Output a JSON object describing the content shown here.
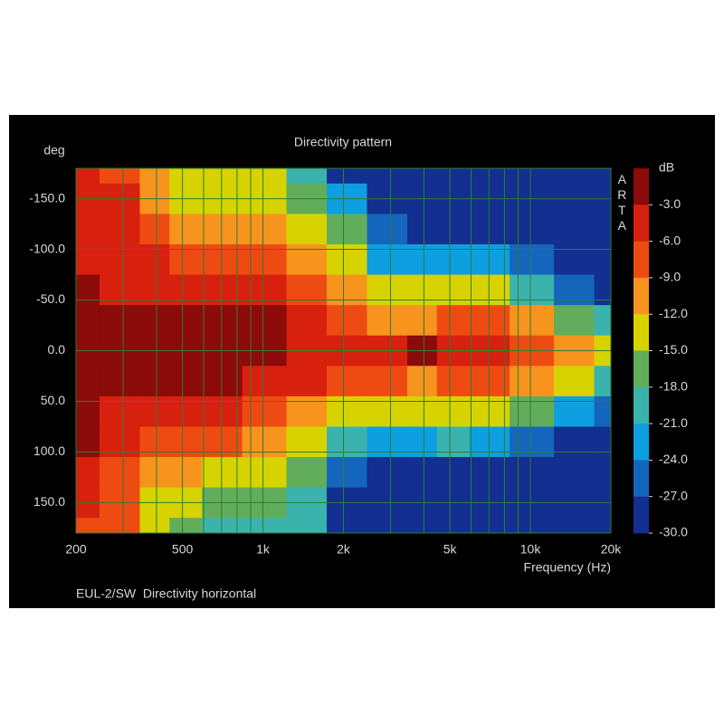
{
  "chart_data": {
    "type": "heatmap",
    "title": "Directivity pattern",
    "y_label": "deg",
    "x_label": "Frequency (Hz)",
    "footer": "EUL-2/SW  Directivity horizontal",
    "watermark": "ARTA",
    "colorbar_label": "dB",
    "x": [
      200,
      300,
      400,
      500,
      700,
      1000,
      1500,
      2000,
      3000,
      4000,
      5000,
      7000,
      10000,
      15000,
      20000
    ],
    "y": [
      -180,
      -150,
      -120,
      -90,
      -60,
      -30,
      0,
      30,
      60,
      90,
      120,
      150,
      180
    ],
    "z": [
      [
        -4,
        -7,
        -10,
        -13,
        -14,
        -12,
        -19,
        -28,
        -30,
        -31,
        -31,
        -31,
        -31,
        -31,
        -31
      ],
      [
        -4,
        -5,
        -11,
        -12,
        -13,
        -12,
        -16,
        -22,
        -31,
        -31,
        -31,
        -31,
        -31,
        -31,
        -31
      ],
      [
        -5,
        -5,
        -7,
        -9,
        -9,
        -10,
        -13,
        -17,
        -26,
        -28,
        -28,
        -29,
        -30,
        -31,
        -31
      ],
      [
        -5,
        -4,
        -5,
        -6,
        -6,
        -6,
        -10,
        -13,
        -21,
        -22,
        -21,
        -23,
        -25,
        -28,
        -30
      ],
      [
        -2,
        -3,
        -4,
        -4,
        -4,
        -5,
        -8,
        -10,
        -14,
        -14,
        -14,
        -14,
        -19,
        -24,
        -28
      ],
      [
        -1,
        -1,
        -2,
        -2,
        -2,
        -2,
        -5,
        -7,
        -9,
        -9,
        -8,
        -6,
        -11,
        -15,
        -20
      ],
      [
        -1,
        -1,
        -1,
        -1,
        -1,
        -1,
        -4,
        -5,
        -4,
        -2,
        -4,
        -4,
        -6,
        -9,
        -12
      ],
      [
        -1,
        -1,
        -2,
        -2,
        -2,
        -3,
        -5,
        -7,
        -7,
        -9,
        -8,
        -7,
        -9,
        -14,
        -18
      ],
      [
        -2,
        -3,
        -4,
        -4,
        -5,
        -6,
        -9,
        -13,
        -12,
        -14,
        -14,
        -14,
        -16,
        -21,
        -26
      ],
      [
        -2,
        -5,
        -6,
        -7,
        -8,
        -9,
        -12,
        -18,
        -21,
        -22,
        -20,
        -22,
        -24,
        -27,
        -30
      ],
      [
        -5,
        -6,
        -10,
        -11,
        -12,
        -12,
        -16,
        -25,
        -27,
        -29,
        -28,
        -29,
        -30,
        -31,
        -31
      ],
      [
        -5,
        -8,
        -12,
        -13,
        -16,
        -17,
        -19,
        -28,
        -30,
        -31,
        -31,
        -31,
        -31,
        -31,
        -31
      ],
      [
        -6,
        -7,
        -13,
        -16,
        -18,
        -19,
        -20,
        -28,
        -31,
        -31,
        -31,
        -31,
        -31,
        -31,
        -31
      ]
    ],
    "xlim": [
      200,
      20000
    ],
    "log_x": true,
    "xticks": [
      200,
      500,
      {
        "value": 1000,
        "label": "1k"
      },
      {
        "value": 2000,
        "label": "2k"
      },
      {
        "value": 5000,
        "label": "5k"
      },
      {
        "value": 10000,
        "label": "10k"
      },
      {
        "value": 20000,
        "label": "20k"
      }
    ],
    "xgrid": [
      200,
      300,
      400,
      500,
      600,
      700,
      800,
      900,
      1000,
      2000,
      3000,
      4000,
      5000,
      6000,
      7000,
      8000,
      9000,
      10000,
      20000
    ],
    "ylim": [
      -180,
      180
    ],
    "yticks": [
      {
        "value": -150,
        "label": "-150.0"
      },
      {
        "value": -100,
        "label": "-100.0"
      },
      {
        "value": -50,
        "label": "-50.0"
      },
      {
        "value": 0,
        "label": "0.0"
      },
      {
        "value": 50,
        "label": "50.0"
      },
      {
        "value": 100,
        "label": "100.0"
      },
      {
        "value": 150,
        "label": "150.0"
      }
    ],
    "grid": true,
    "grid_color": "#2e7d32",
    "zlim": [
      -30,
      0
    ],
    "zticks": [
      {
        "value": -3,
        "label": "-3.0"
      },
      {
        "value": -6,
        "label": "-6.0"
      },
      {
        "value": -9,
        "label": "-9.0"
      },
      {
        "value": -12,
        "label": "-12.0"
      },
      {
        "value": -15,
        "label": "-15.0"
      },
      {
        "value": -18,
        "label": "-18.0"
      },
      {
        "value": -21,
        "label": "-21.0"
      },
      {
        "value": -24,
        "label": "-24.0"
      },
      {
        "value": -27,
        "label": "-27.0"
      },
      {
        "value": -30,
        "label": "-30.0"
      }
    ],
    "colors": [
      "#8b0a0a",
      "#d8200e",
      "#ee4b12",
      "#f7941d",
      "#d7d300",
      "#62ad5c",
      "#3bb3ad",
      "#0d9fe0",
      "#1466bd",
      "#132f8f"
    ]
  }
}
